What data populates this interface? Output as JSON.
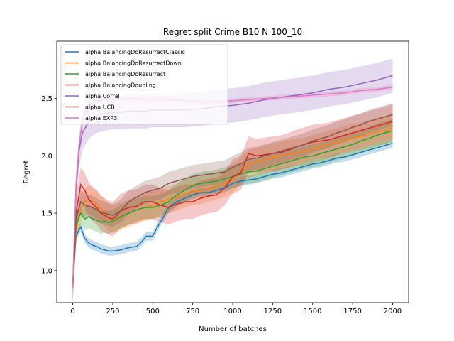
{
  "chart_data": {
    "type": "line",
    "title": "Regret split Crime B10 N 100_10",
    "xlabel": "Number of batches",
    "ylabel": "Regret",
    "xlim": [
      -100,
      2100
    ],
    "ylim": [
      0.72,
      3.0
    ],
    "xticks": [
      0,
      250,
      500,
      750,
      1000,
      1250,
      1500,
      1750,
      2000
    ],
    "yticks": [
      1.0,
      1.5,
      2.0,
      2.5
    ],
    "ytick_labels": [
      "1.0",
      "1.5",
      "2.0",
      "2.5"
    ],
    "grid": false,
    "legend_position": "top-left",
    "series": [
      {
        "name": "alpha BalancingDoResurrectClassic",
        "color": "#1f77b4",
        "x": [
          0,
          20,
          50,
          75,
          100,
          125,
          150,
          175,
          200,
          225,
          250,
          300,
          350,
          400,
          430,
          460,
          500,
          530,
          560,
          600,
          650,
          700,
          750,
          800,
          850,
          900,
          950,
          1000,
          1050,
          1100,
          1150,
          1200,
          1250,
          1300,
          1350,
          1400,
          1450,
          1500,
          1550,
          1600,
          1650,
          1700,
          1750,
          1800,
          1850,
          1900,
          1950,
          2000
        ],
        "y": [
          0.85,
          1.3,
          1.38,
          1.28,
          1.24,
          1.22,
          1.21,
          1.19,
          1.18,
          1.17,
          1.17,
          1.18,
          1.2,
          1.21,
          1.25,
          1.3,
          1.3,
          1.38,
          1.45,
          1.55,
          1.6,
          1.63,
          1.66,
          1.68,
          1.68,
          1.7,
          1.72,
          1.76,
          1.78,
          1.79,
          1.8,
          1.82,
          1.84,
          1.85,
          1.87,
          1.89,
          1.91,
          1.93,
          1.94,
          1.96,
          1.98,
          1.99,
          2.01,
          2.03,
          2.05,
          2.07,
          2.09,
          2.11
        ],
        "band": 0.04
      },
      {
        "name": "alpha BalancingDoResurrectDown",
        "color": "#ff7f0e",
        "x": [
          0,
          20,
          50,
          75,
          100,
          125,
          150,
          175,
          200,
          225,
          250,
          300,
          350,
          400,
          450,
          500,
          550,
          600,
          650,
          700,
          750,
          800,
          850,
          900,
          950,
          1000,
          1050,
          1100,
          1150,
          1200,
          1250,
          1300,
          1350,
          1400,
          1450,
          1500,
          1550,
          1600,
          1650,
          1700,
          1750,
          1800,
          1850,
          1900,
          1950,
          2000
        ],
        "y": [
          0.85,
          1.35,
          1.55,
          1.6,
          1.62,
          1.6,
          1.58,
          1.54,
          1.5,
          1.46,
          1.45,
          1.47,
          1.5,
          1.53,
          1.55,
          1.57,
          1.6,
          1.62,
          1.64,
          1.67,
          1.69,
          1.7,
          1.72,
          1.74,
          1.76,
          1.8,
          1.87,
          1.93,
          1.95,
          1.97,
          1.99,
          2.0,
          2.02,
          2.03,
          2.04,
          2.06,
          2.08,
          2.1,
          2.12,
          2.14,
          2.16,
          2.17,
          2.19,
          2.21,
          2.22,
          2.25
        ],
        "band": 0.12
      },
      {
        "name": "alpha BalancingDoResurrect",
        "color": "#2ca02c",
        "x": [
          0,
          20,
          50,
          75,
          100,
          125,
          150,
          175,
          200,
          225,
          250,
          300,
          350,
          400,
          450,
          500,
          550,
          600,
          650,
          700,
          750,
          800,
          850,
          900,
          950,
          1000,
          1050,
          1100,
          1150,
          1200,
          1250,
          1300,
          1350,
          1400,
          1450,
          1500,
          1550,
          1600,
          1650,
          1700,
          1750,
          1800,
          1850,
          1900,
          1950,
          2000
        ],
        "y": [
          0.85,
          1.4,
          1.5,
          1.45,
          1.47,
          1.45,
          1.44,
          1.42,
          1.43,
          1.42,
          1.43,
          1.47,
          1.5,
          1.53,
          1.55,
          1.55,
          1.57,
          1.6,
          1.66,
          1.7,
          1.74,
          1.76,
          1.77,
          1.78,
          1.8,
          1.82,
          1.84,
          1.86,
          1.87,
          1.89,
          1.91,
          1.93,
          1.95,
          1.97,
          1.99,
          2.0,
          2.02,
          2.04,
          2.06,
          2.08,
          2.1,
          2.13,
          2.15,
          2.18,
          2.2,
          2.22
        ],
        "band": 0.1
      },
      {
        "name": "alpha BalancingDoubling",
        "color": "#d62728",
        "x": [
          0,
          20,
          50,
          75,
          100,
          125,
          150,
          175,
          200,
          225,
          250,
          275,
          300,
          350,
          400,
          450,
          500,
          550,
          600,
          650,
          700,
          750,
          800,
          850,
          900,
          950,
          1000,
          1050,
          1100,
          1150,
          1200,
          1250,
          1300,
          1350,
          1400,
          1450,
          1500,
          1550,
          1600,
          1650,
          1700,
          1750,
          1800,
          1850,
          1900,
          1950,
          2000
        ],
        "y": [
          0.85,
          1.5,
          1.75,
          1.7,
          1.62,
          1.58,
          1.55,
          1.5,
          1.48,
          1.46,
          1.45,
          1.48,
          1.52,
          1.55,
          1.56,
          1.6,
          1.6,
          1.57,
          1.55,
          1.58,
          1.6,
          1.6,
          1.63,
          1.65,
          1.66,
          1.72,
          1.82,
          1.85,
          2.02,
          2.0,
          2.01,
          2.02,
          2.03,
          2.05,
          2.08,
          2.1,
          2.12,
          2.13,
          2.14,
          2.16,
          2.18,
          2.2,
          2.22,
          2.24,
          2.26,
          2.28,
          2.3
        ],
        "band": 0.15
      },
      {
        "name": "alpha Corral",
        "color": "#9467bd",
        "x": [
          0,
          20,
          40,
          60,
          80,
          100,
          125,
          150,
          175,
          200,
          250,
          300,
          350,
          400,
          450,
          500,
          600,
          700,
          800,
          900,
          1000,
          1100,
          1200,
          1300,
          1400,
          1500,
          1600,
          1700,
          1800,
          1900,
          2000
        ],
        "y": [
          0.85,
          1.7,
          2.05,
          2.2,
          2.25,
          2.3,
          2.33,
          2.35,
          2.36,
          2.37,
          2.38,
          2.38,
          2.39,
          2.39,
          2.39,
          2.4,
          2.4,
          2.4,
          2.41,
          2.43,
          2.44,
          2.46,
          2.49,
          2.51,
          2.53,
          2.55,
          2.58,
          2.6,
          2.63,
          2.66,
          2.7
        ],
        "band": 0.15
      },
      {
        "name": "alpha UCB",
        "color": "#8c564b",
        "x": [
          0,
          20,
          50,
          75,
          100,
          125,
          150,
          175,
          200,
          225,
          250,
          300,
          350,
          400,
          450,
          500,
          550,
          600,
          650,
          700,
          750,
          800,
          850,
          900,
          950,
          1000,
          1050,
          1100,
          1150,
          1200,
          1250,
          1300,
          1350,
          1400,
          1450,
          1500,
          1550,
          1600,
          1650,
          1700,
          1750,
          1800,
          1850,
          1900,
          1950,
          2000
        ],
        "y": [
          0.85,
          1.45,
          1.6,
          1.57,
          1.56,
          1.55,
          1.53,
          1.51,
          1.5,
          1.49,
          1.48,
          1.52,
          1.6,
          1.64,
          1.68,
          1.7,
          1.72,
          1.76,
          1.78,
          1.8,
          1.82,
          1.83,
          1.84,
          1.85,
          1.86,
          1.9,
          1.93,
          1.97,
          1.98,
          2.0,
          2.02,
          2.04,
          2.06,
          2.08,
          2.1,
          2.13,
          2.15,
          2.17,
          2.2,
          2.22,
          2.25,
          2.27,
          2.3,
          2.32,
          2.34,
          2.36
        ],
        "band": 0.1
      },
      {
        "name": "alpha EXP3",
        "color": "#e377c2",
        "x": [
          0,
          20,
          40,
          60,
          80,
          100,
          150,
          200,
          300,
          400,
          500,
          600,
          700,
          800,
          900,
          1000,
          1100,
          1200,
          1300,
          1400,
          1500,
          1600,
          1700,
          1800,
          1900,
          2000
        ],
        "y": [
          0.85,
          1.75,
          2.1,
          2.3,
          2.4,
          2.45,
          2.48,
          2.49,
          2.5,
          2.5,
          2.49,
          2.49,
          2.48,
          2.47,
          2.47,
          2.48,
          2.49,
          2.5,
          2.51,
          2.52,
          2.53,
          2.54,
          2.55,
          2.57,
          2.58,
          2.6
        ],
        "band": 0.02
      }
    ]
  }
}
